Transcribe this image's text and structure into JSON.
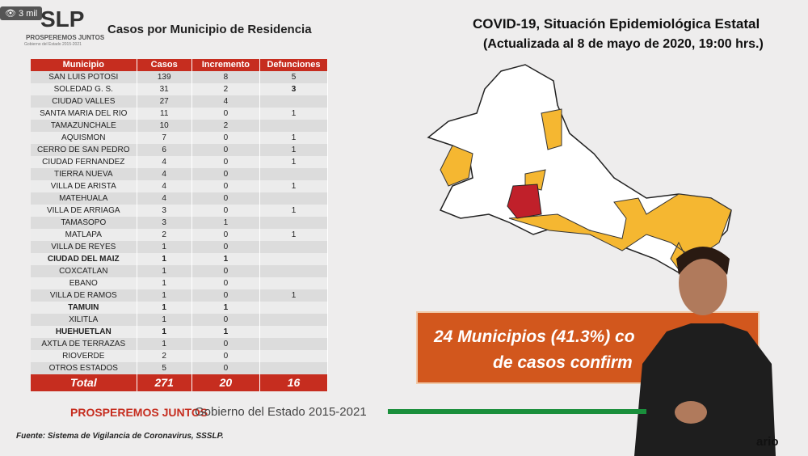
{
  "badge": "3 mil",
  "logo": {
    "mark": "SLP",
    "motto": "PROSPEREMOS JUNTOS",
    "subtitle": "Gobierno del Estado 2015-2021"
  },
  "table": {
    "title": "Casos por Municipio de Residencia",
    "headers": [
      "Municipio",
      "Casos",
      "Incremento",
      "Defunciones"
    ],
    "rows": [
      {
        "municipio": "SAN LUIS POTOSI",
        "casos": 139,
        "incremento": 8,
        "defunciones": 5
      },
      {
        "municipio": "SOLEDAD G. S.",
        "casos": 31,
        "incremento": 2,
        "defunciones": 3,
        "bold_deaths": true
      },
      {
        "municipio": "CIUDAD VALLES",
        "casos": 27,
        "incremento": 4,
        "defunciones": null
      },
      {
        "municipio": "SANTA MARIA DEL RIO",
        "casos": 11,
        "incremento": 0,
        "defunciones": 1
      },
      {
        "municipio": "TAMAZUNCHALE",
        "casos": 10,
        "incremento": 2,
        "defunciones": null
      },
      {
        "municipio": "AQUISMON",
        "casos": 7,
        "incremento": 0,
        "defunciones": 1
      },
      {
        "municipio": "CERRO DE SAN PEDRO",
        "casos": 6,
        "incremento": 0,
        "defunciones": 1
      },
      {
        "municipio": "CIUDAD FERNANDEZ",
        "casos": 4,
        "incremento": 0,
        "defunciones": 1
      },
      {
        "municipio": "TIERRA NUEVA",
        "casos": 4,
        "incremento": 0,
        "defunciones": null
      },
      {
        "municipio": "VILLA DE ARISTA",
        "casos": 4,
        "incremento": 0,
        "defunciones": 1
      },
      {
        "municipio": "MATEHUALA",
        "casos": 4,
        "incremento": 0,
        "defunciones": null
      },
      {
        "municipio": "VILLA DE ARRIAGA",
        "casos": 3,
        "incremento": 0,
        "defunciones": 1
      },
      {
        "municipio": "TAMASOPO",
        "casos": 3,
        "incremento": 1,
        "defunciones": null
      },
      {
        "municipio": "MATLAPA",
        "casos": 2,
        "incremento": 0,
        "defunciones": 1
      },
      {
        "municipio": "VILLA DE REYES",
        "casos": 1,
        "incremento": 0,
        "defunciones": null
      },
      {
        "municipio": "CIUDAD DEL MAIZ",
        "casos": 1,
        "incremento": 1,
        "defunciones": null,
        "bold": true
      },
      {
        "municipio": "COXCATLAN",
        "casos": 1,
        "incremento": 0,
        "defunciones": null
      },
      {
        "municipio": "EBANO",
        "casos": 1,
        "incremento": 0,
        "defunciones": null
      },
      {
        "municipio": "VILLA DE RAMOS",
        "casos": 1,
        "incremento": 0,
        "defunciones": 1
      },
      {
        "municipio": "TAMUIN",
        "casos": 1,
        "incremento": 1,
        "defunciones": null,
        "bold": true
      },
      {
        "municipio": "XILITLA",
        "casos": 1,
        "incremento": 0,
        "defunciones": null
      },
      {
        "municipio": "HUEHUETLAN",
        "casos": 1,
        "incremento": 1,
        "defunciones": null,
        "bold": true
      },
      {
        "municipio": "AXTLA DE TERRAZAS",
        "casos": 1,
        "incremento": 0,
        "defunciones": null
      },
      {
        "municipio": "RIOVERDE",
        "casos": 2,
        "incremento": 0,
        "defunciones": null
      },
      {
        "municipio": "OTROS ESTADOS",
        "casos": 5,
        "incremento": 0,
        "defunciones": null
      }
    ],
    "total": {
      "label": "Total",
      "casos": 271,
      "incremento": 20,
      "defunciones": 16
    }
  },
  "header": {
    "title": "COVID-19, Situación Epidemiológica Estatal",
    "subtitle": "(Actualizada al 8 de mayo de 2020, 19:00 hrs.)"
  },
  "callout": {
    "line1": "24 Municipios (41.3%) co",
    "line2": "de casos confirm"
  },
  "footer": {
    "motto": "PROSPEREMOS JUNTOS",
    "government": "Gobierno del Estado 2015-2021",
    "source": "Fuente: Sistema de Vigilancia de Coronavirus, SSSLP.",
    "corner": "ario"
  }
}
